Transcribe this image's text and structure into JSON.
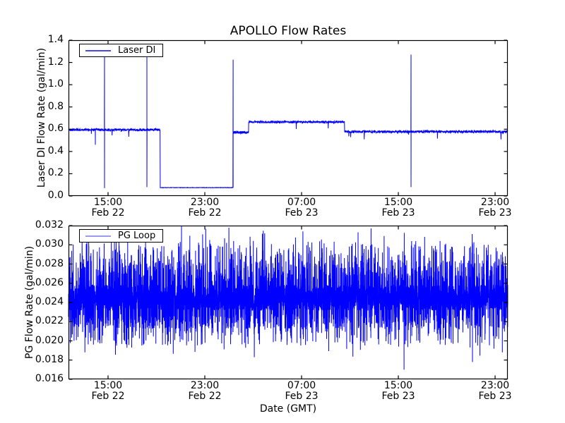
{
  "figure": {
    "title": "APOLLO Flow Rates",
    "xlabel": "Date (GMT)",
    "background": "#ffffff",
    "frame_color": "#000000",
    "line_color": "#0000ff"
  },
  "chart_data": [
    {
      "type": "line",
      "title": "APOLLO Flow Rates",
      "ylabel": "Laser DI Flow Rate (gal/min)",
      "legend": "Laser DI",
      "legend_position": "upper left",
      "legend_sample_color": "#4a4ae0",
      "grid": false,
      "ylim": [
        0.0,
        1.4
      ],
      "ytick_values": [
        0.0,
        0.2,
        0.4,
        0.6,
        0.8,
        1.0,
        1.2,
        1.4
      ],
      "ytick_labels": [
        "0.0",
        "0.2",
        "0.4",
        "0.6",
        "0.8",
        "1.0",
        "1.2",
        "1.4"
      ],
      "xlim_hours": [
        11.73,
        48.05
      ],
      "xtick_hours": [
        15,
        23,
        31,
        39,
        47
      ],
      "xtick_labels": [
        [
          "15:00",
          "Feb 22"
        ],
        [
          "23:00",
          "Feb 22"
        ],
        [
          "07:00",
          "Feb 23"
        ],
        [
          "15:00",
          "Feb 23"
        ],
        [
          "23:00",
          "Feb 23"
        ]
      ],
      "series": [
        {
          "name": "Laser DI",
          "color": "#0000ff",
          "points": 2400,
          "seed": 42,
          "baseline_segments": [
            {
              "t0": 11.73,
              "t1": 19.3,
              "level": 0.595,
              "noise": 0.011
            },
            {
              "t0": 19.3,
              "t1": 25.34,
              "level": 0.075,
              "noise": 0.0018
            },
            {
              "t0": 25.34,
              "t1": 26.62,
              "level": 0.572,
              "noise": 0.012
            },
            {
              "t0": 26.62,
              "t1": 34.56,
              "level": 0.665,
              "noise": 0.009
            },
            {
              "t0": 34.56,
              "t1": 48.05,
              "level": 0.578,
              "noise": 0.011
            }
          ],
          "spikes": [
            {
              "t": 13.95,
              "lo": 0.46,
              "hi": null
            },
            {
              "t": 14.71,
              "lo": 0.07,
              "hi": 1.285
            },
            {
              "t": 18.21,
              "lo": 0.08,
              "hi": 1.26
            },
            {
              "t": 25.34,
              "lo": 0.075,
              "hi": 1.225
            },
            {
              "t": 40.05,
              "lo": 0.08,
              "hi": 1.27
            }
          ]
        }
      ]
    },
    {
      "type": "line",
      "ylabel": "PG Flow Rate (gal/min)",
      "legend": "PG Loop",
      "legend_position": "upper left",
      "legend_sample_color": "#9a9aee",
      "grid": false,
      "ylim": [
        0.016,
        0.032
      ],
      "ytick_values": [
        0.016,
        0.018,
        0.02,
        0.022,
        0.024,
        0.026,
        0.028,
        0.03,
        0.032
      ],
      "ytick_labels": [
        "0.016",
        "0.018",
        "0.020",
        "0.022",
        "0.024",
        "0.026",
        "0.028",
        "0.030",
        "0.032"
      ],
      "xlim_hours": [
        11.73,
        48.05
      ],
      "xtick_hours": [
        15,
        23,
        31,
        39,
        47
      ],
      "xtick_labels": [
        [
          "15:00",
          "Feb 22"
        ],
        [
          "23:00",
          "Feb 22"
        ],
        [
          "07:00",
          "Feb 23"
        ],
        [
          "15:00",
          "Feb 23"
        ],
        [
          "23:00",
          "Feb 23"
        ]
      ],
      "series": [
        {
          "name": "PG Loop",
          "color": "#0000ff",
          "points": 6000,
          "seed": 1337,
          "noise_band": {
            "mean": 0.0245,
            "half_width": 0.00135
          },
          "spike_model": {
            "very_high": {
              "prob": 0.004,
              "min": 0.0305,
              "max": 0.0318
            },
            "high": {
              "prob": 0.04,
              "min": 0.0284,
              "max": 0.0304
            },
            "mid_high": {
              "prob": 0.105,
              "min": 0.0262,
              "max": 0.0284
            },
            "very_low": {
              "prob": 0.004,
              "min": 0.0183,
              "max": 0.0195
            },
            "low": {
              "prob": 0.035,
              "min": 0.0195,
              "max": 0.0212
            },
            "mid_low": {
              "prob": 0.11,
              "min": 0.0212,
              "max": 0.0228
            }
          },
          "extreme_spikes": [
            {
              "t": 21.07,
              "v": 0.032
            },
            {
              "t": 23.4,
              "v": 0.0305
            },
            {
              "t": 24.8,
              "v": 0.0302
            },
            {
              "t": 35.67,
              "v": 0.0313
            },
            {
              "t": 39.47,
              "v": 0.017
            },
            {
              "t": 45.13,
              "v": 0.0178
            },
            {
              "t": 47.6,
              "v": 0.0188
            }
          ]
        }
      ]
    }
  ]
}
